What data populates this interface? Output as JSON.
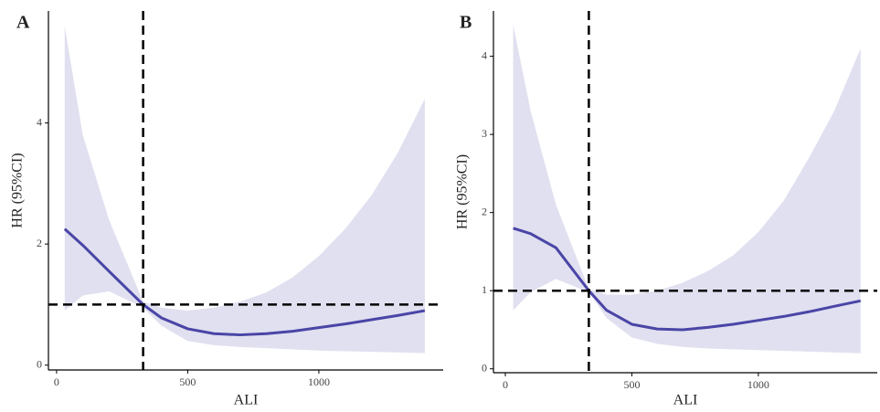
{
  "chart_data": [
    {
      "type": "line",
      "label": "A",
      "xlabel": "ALI",
      "ylabel": "HR (95%CI)",
      "x": [
        31,
        100,
        200,
        330,
        400,
        500,
        600,
        700,
        800,
        900,
        1000,
        1100,
        1200,
        1300,
        1404
      ],
      "values": [
        2.25,
        1.98,
        1.55,
        1.0,
        0.78,
        0.6,
        0.52,
        0.5,
        0.52,
        0.56,
        0.62,
        0.68,
        0.75,
        0.82,
        0.9
      ],
      "lower": [
        0.9,
        1.15,
        1.22,
        0.95,
        0.65,
        0.4,
        0.33,
        0.3,
        0.28,
        0.26,
        0.24,
        0.23,
        0.22,
        0.21,
        0.2
      ],
      "upper": [
        5.6,
        3.8,
        2.4,
        1.05,
        0.95,
        0.9,
        0.95,
        1.05,
        1.2,
        1.45,
        1.8,
        2.25,
        2.8,
        3.5,
        4.4
      ],
      "color": "#4a45a6",
      "band_color": "#e0e0f0",
      "vline": 330,
      "hline": 1,
      "xlim": [
        -31,
        1474
      ],
      "ylim": [
        -0.08,
        5.85
      ],
      "xticks": [
        0,
        500,
        1000
      ],
      "yticks": [
        0,
        2,
        4
      ]
    },
    {
      "type": "line",
      "label": "B",
      "xlabel": "ALI",
      "ylabel": "HR (95%CI)",
      "x": [
        31,
        100,
        200,
        330,
        400,
        500,
        600,
        700,
        800,
        900,
        1000,
        1100,
        1200,
        1300,
        1404
      ],
      "values": [
        1.8,
        1.73,
        1.55,
        1.0,
        0.75,
        0.57,
        0.51,
        0.5,
        0.53,
        0.57,
        0.62,
        0.67,
        0.73,
        0.8,
        0.87
      ],
      "lower": [
        0.75,
        0.98,
        1.15,
        0.98,
        0.65,
        0.4,
        0.32,
        0.28,
        0.26,
        0.25,
        0.24,
        0.23,
        0.22,
        0.21,
        0.2
      ],
      "upper": [
        4.4,
        3.3,
        2.1,
        1.02,
        0.95,
        0.95,
        1.0,
        1.1,
        1.25,
        1.45,
        1.75,
        2.15,
        2.7,
        3.3,
        4.1
      ],
      "color": "#4a45a6",
      "band_color": "#e0e0f0",
      "vline": 330,
      "hline": 1,
      "xlim": [
        -47,
        1470
      ],
      "ylim": [
        -0.05,
        4.58
      ],
      "xticks": [
        0,
        500,
        1000
      ],
      "yticks": [
        0,
        1,
        2,
        3,
        4
      ]
    }
  ]
}
